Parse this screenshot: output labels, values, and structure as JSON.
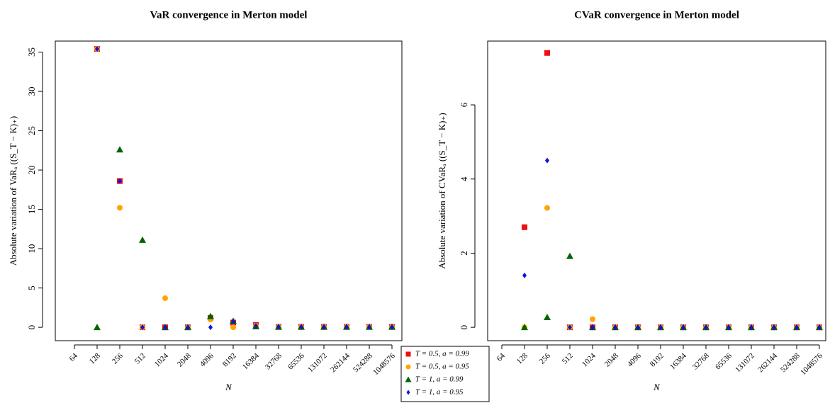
{
  "chart_data": [
    {
      "type": "scatter",
      "title": "VaR convergence in Merton model",
      "xlabel": "N",
      "ylabel": "Absolute variation of VaRₐ ((S_T − K)₊)",
      "categories": [
        "64",
        "128",
        "256",
        "512",
        "1024",
        "2048",
        "4096",
        "8192",
        "16384",
        "32768",
        "65536",
        "131072",
        "262144",
        "524288",
        "1048576"
      ],
      "ylim": [
        -1.7,
        36.4
      ],
      "yticks": [
        0,
        5,
        10,
        15,
        20,
        25,
        30,
        35
      ],
      "legend": "bottom",
      "series": [
        {
          "name": "T = 0.5, a = 0.99",
          "color": "#ee1111",
          "marker": "square",
          "values": [
            null,
            35.4,
            18.6,
            0,
            0,
            0,
            1.2,
            0.6,
            0.3,
            0.05,
            0.05,
            0.05,
            0.05,
            0.05,
            0.05
          ]
        },
        {
          "name": "T = 0.5, a = 0.95",
          "color": "#ffa500",
          "marker": "circle",
          "values": [
            null,
            35.4,
            15.2,
            0,
            3.7,
            0,
            1.0,
            0,
            0.2,
            0.05,
            0.05,
            0.05,
            0.05,
            0.05,
            0.05
          ]
        },
        {
          "name": "T = 1, a = 0.99",
          "color": "#006400",
          "marker": "triangle",
          "values": [
            null,
            0,
            22.6,
            11.1,
            0,
            0,
            1.4,
            0.8,
            0.1,
            0.05,
            0.05,
            0.05,
            0.05,
            0.05,
            0.05
          ]
        },
        {
          "name": "T = 1, a = 0.95",
          "color": "#1111dd",
          "marker": "diamond",
          "values": [
            null,
            35.4,
            18.6,
            0,
            0,
            0,
            0,
            0.7,
            0.2,
            0.05,
            0.05,
            0.05,
            0.05,
            0.05,
            0.05
          ]
        }
      ]
    },
    {
      "type": "scatter",
      "title": "CVaR convergence in Merton model",
      "xlabel": "N",
      "ylabel": "Absolute variation of CVaRₐ ((S_T − K)₊)",
      "categories": [
        "64",
        "128",
        "256",
        "512",
        "1024",
        "2048",
        "4096",
        "8192",
        "16384",
        "32768",
        "65536",
        "131072",
        "262144",
        "524288",
        "1048576"
      ],
      "ylim": [
        -0.36,
        7.72
      ],
      "yticks": [
        0,
        2,
        4,
        6
      ],
      "series": [
        {
          "color": "#ee1111",
          "marker": "square",
          "values": [
            null,
            2.7,
            7.4,
            0,
            0,
            0,
            0,
            0,
            0,
            0,
            0,
            0,
            0,
            0,
            0
          ]
        },
        {
          "color": "#ffa500",
          "marker": "circle",
          "values": [
            null,
            0,
            3.22,
            0,
            0.22,
            0,
            0,
            0,
            0,
            0,
            0,
            0,
            0,
            0,
            0
          ]
        },
        {
          "color": "#006400",
          "marker": "triangle",
          "values": [
            null,
            0,
            0.27,
            1.92,
            0,
            0,
            0,
            0,
            0,
            0,
            0,
            0,
            0,
            0,
            0
          ]
        },
        {
          "color": "#1111dd",
          "marker": "diamond",
          "values": [
            null,
            1.4,
            4.5,
            0,
            0,
            0,
            0,
            0,
            0,
            0,
            0,
            0,
            0,
            0,
            0
          ]
        }
      ]
    }
  ]
}
